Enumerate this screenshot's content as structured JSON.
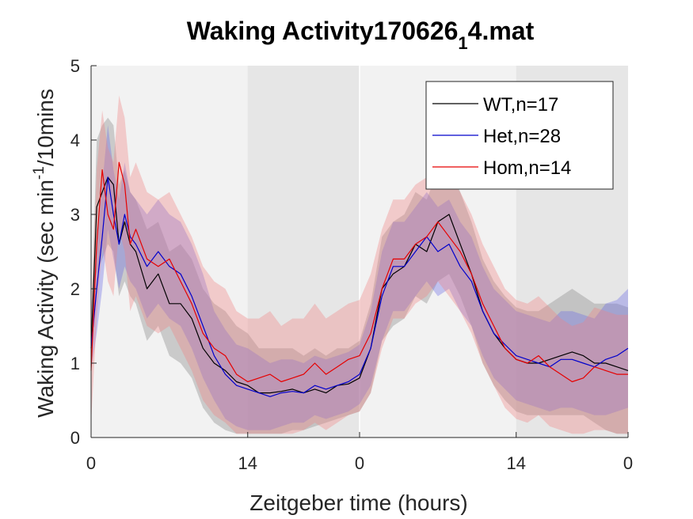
{
  "chart_data": {
    "type": "line",
    "title": "Waking Activity170626",
    "title_subscript": "1",
    "title_suffix": "4.mat",
    "xlabel": "Zeitgeber time (hours)",
    "ylabel": "Waking Activity (sec min",
    "ylabel_superscript": "-1",
    "ylabel_suffix": "/10mins",
    "xlim": [
      0,
      48
    ],
    "ylim": [
      0,
      5
    ],
    "x_tick_positions": [
      0,
      14,
      24,
      38,
      48
    ],
    "x_tick_labels": [
      "0",
      "14",
      "0",
      "14",
      "0"
    ],
    "y_ticks": [
      0,
      1,
      2,
      3,
      4,
      5
    ],
    "y_tick_labels": [
      "0",
      "1",
      "2",
      "3",
      "4",
      "5"
    ],
    "dark_periods": [
      [
        14,
        24
      ],
      [
        38,
        48
      ]
    ],
    "legend_position": "top-right",
    "colors": {
      "light_band": "#f2f2f2",
      "dark_band": "#e6e6e6",
      "axes": "#262626"
    },
    "x": [
      0,
      0.5,
      1,
      1.5,
      2,
      2.5,
      3,
      3.5,
      4,
      5,
      6,
      7,
      8,
      9,
      10,
      11,
      12,
      13,
      14,
      15,
      16,
      17,
      18,
      19,
      20,
      21,
      22,
      23,
      24,
      25,
      26,
      27,
      28,
      29,
      30,
      31,
      32,
      33,
      34,
      35,
      36,
      37,
      38,
      39,
      40,
      41,
      42,
      43,
      44,
      45,
      46,
      47,
      48
    ],
    "series": [
      {
        "name": "WT,n=17",
        "color": "#000000",
        "band_color": "#808080",
        "values": [
          1.2,
          3.1,
          3.3,
          3.5,
          3.4,
          2.6,
          2.9,
          2.6,
          2.5,
          2.0,
          2.2,
          1.8,
          1.8,
          1.6,
          1.2,
          1.0,
          0.9,
          0.75,
          0.7,
          0.6,
          0.6,
          0.62,
          0.65,
          0.6,
          0.65,
          0.6,
          0.7,
          0.72,
          0.8,
          1.2,
          2.0,
          2.2,
          2.3,
          2.6,
          2.5,
          2.9,
          3.0,
          2.6,
          2.2,
          1.7,
          1.4,
          1.2,
          1.05,
          1.0,
          1.0,
          1.05,
          1.1,
          1.15,
          1.1,
          1.0,
          1.0,
          0.95,
          0.9
        ],
        "lower": [
          0.9,
          2.2,
          2.4,
          2.6,
          2.5,
          1.9,
          2.1,
          1.9,
          1.8,
          1.3,
          1.5,
          1.1,
          1.0,
          0.8,
          0.4,
          0.2,
          0.1,
          0.05,
          0.05,
          0.05,
          0.05,
          0.05,
          0.1,
          0.1,
          0.15,
          0.2,
          0.25,
          0.3,
          0.35,
          0.6,
          1.3,
          1.5,
          1.6,
          1.9,
          1.8,
          2.1,
          2.2,
          1.9,
          1.5,
          1.0,
          0.7,
          0.5,
          0.35,
          0.3,
          0.3,
          0.3,
          0.3,
          0.3,
          0.3,
          0.2,
          0.1,
          0.05,
          0.05
        ],
        "upper": [
          1.5,
          4.0,
          4.2,
          4.3,
          4.2,
          3.4,
          3.6,
          3.3,
          3.2,
          2.8,
          2.9,
          2.5,
          2.6,
          2.4,
          2.0,
          1.8,
          1.7,
          1.5,
          1.4,
          1.2,
          1.2,
          1.2,
          1.2,
          1.1,
          1.2,
          1.1,
          1.2,
          1.2,
          1.3,
          1.8,
          2.7,
          2.9,
          3.0,
          3.3,
          3.2,
          3.6,
          3.7,
          3.3,
          2.9,
          2.4,
          2.1,
          1.9,
          1.75,
          1.7,
          1.7,
          1.8,
          1.9,
          2.0,
          1.9,
          1.8,
          1.8,
          1.8,
          1.75
        ]
      },
      {
        "name": "Het,n=28",
        "color": "#0000cc",
        "band_color": "#6666e6",
        "values": [
          1.2,
          2.0,
          2.7,
          3.5,
          3.0,
          2.6,
          3.0,
          2.7,
          2.6,
          2.3,
          2.5,
          2.3,
          2.2,
          1.9,
          1.5,
          1.1,
          0.85,
          0.7,
          0.65,
          0.6,
          0.55,
          0.6,
          0.62,
          0.6,
          0.7,
          0.65,
          0.7,
          0.75,
          0.85,
          1.2,
          1.9,
          2.3,
          2.3,
          2.5,
          2.7,
          2.5,
          2.6,
          2.3,
          2.1,
          1.7,
          1.4,
          1.25,
          1.1,
          1.05,
          1.0,
          0.95,
          1.05,
          1.05,
          1.0,
          0.95,
          1.05,
          1.1,
          1.2
        ],
        "lower": [
          0.9,
          1.4,
          2.0,
          2.8,
          2.4,
          2.0,
          2.3,
          2.1,
          2.0,
          1.6,
          1.8,
          1.6,
          1.5,
          1.2,
          0.8,
          0.5,
          0.25,
          0.15,
          0.1,
          0.1,
          0.1,
          0.15,
          0.2,
          0.2,
          0.3,
          0.25,
          0.3,
          0.35,
          0.45,
          0.7,
          1.3,
          1.7,
          1.7,
          1.9,
          2.1,
          1.9,
          2.0,
          1.7,
          1.5,
          1.1,
          0.8,
          0.65,
          0.5,
          0.45,
          0.4,
          0.35,
          0.4,
          0.4,
          0.35,
          0.3,
          0.3,
          0.35,
          0.4
        ],
        "upper": [
          1.5,
          2.6,
          3.4,
          4.2,
          3.6,
          3.2,
          3.7,
          3.3,
          3.2,
          3.0,
          3.2,
          3.0,
          2.9,
          2.6,
          2.2,
          1.7,
          1.45,
          1.25,
          1.2,
          1.1,
          1.0,
          1.05,
          1.05,
          1.0,
          1.1,
          1.05,
          1.1,
          1.15,
          1.25,
          1.7,
          2.5,
          2.9,
          2.9,
          3.1,
          3.3,
          3.1,
          3.2,
          2.9,
          2.7,
          2.3,
          2.0,
          1.85,
          1.7,
          1.65,
          1.6,
          1.55,
          1.7,
          1.7,
          1.65,
          1.6,
          1.8,
          1.85,
          2.0
        ]
      },
      {
        "name": "Hom,n=14",
        "color": "#e60000",
        "band_color": "#f08080",
        "values": [
          0.9,
          2.6,
          3.6,
          3.0,
          2.8,
          3.7,
          3.4,
          2.6,
          2.8,
          2.4,
          2.3,
          2.4,
          2.1,
          1.8,
          1.4,
          1.2,
          1.1,
          0.85,
          0.75,
          0.8,
          0.85,
          0.75,
          0.8,
          0.85,
          1.0,
          0.85,
          0.95,
          1.05,
          1.1,
          1.4,
          2.0,
          2.4,
          2.4,
          2.6,
          2.7,
          2.9,
          2.7,
          2.5,
          2.2,
          1.8,
          1.5,
          1.2,
          1.05,
          1.0,
          1.1,
          0.95,
          0.85,
          0.75,
          0.8,
          0.95,
          0.9,
          0.85,
          0.85
        ],
        "lower": [
          0.2,
          1.6,
          2.6,
          2.1,
          1.9,
          2.8,
          2.5,
          1.7,
          1.9,
          1.5,
          1.4,
          1.5,
          1.2,
          0.9,
          0.5,
          0.3,
          0.2,
          0.05,
          0.05,
          0.05,
          0.05,
          0.05,
          0.05,
          0.1,
          0.2,
          0.1,
          0.2,
          0.3,
          0.35,
          0.6,
          1.2,
          1.6,
          1.6,
          1.8,
          1.9,
          2.1,
          1.9,
          1.7,
          1.4,
          1.0,
          0.7,
          0.4,
          0.25,
          0.2,
          0.3,
          0.15,
          0.1,
          0.05,
          0.05,
          0.1,
          0.1,
          0.05,
          0.05
        ],
        "upper": [
          1.6,
          3.6,
          4.4,
          3.9,
          3.7,
          4.6,
          4.3,
          3.5,
          3.7,
          3.3,
          3.2,
          3.3,
          3.0,
          2.7,
          2.3,
          2.1,
          2.0,
          1.7,
          1.6,
          1.6,
          1.7,
          1.5,
          1.6,
          1.6,
          1.8,
          1.6,
          1.7,
          1.8,
          1.85,
          2.2,
          2.8,
          3.2,
          3.2,
          3.4,
          3.5,
          3.7,
          3.5,
          3.3,
          3.0,
          2.6,
          2.3,
          2.0,
          1.85,
          1.8,
          1.9,
          1.75,
          1.6,
          1.5,
          1.55,
          1.75,
          1.7,
          1.65,
          1.65
        ]
      }
    ]
  }
}
